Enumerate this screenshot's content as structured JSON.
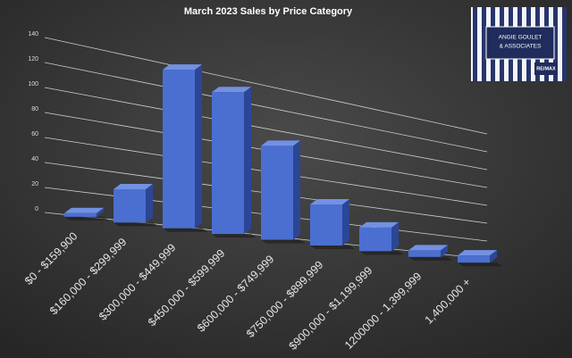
{
  "chart_data": {
    "type": "bar3d",
    "title": "March 2023 Sales by Price Category",
    "categories": [
      "$0 - $159,900",
      "$160,000 - $299,999",
      "$300,000 - $449,999",
      "$450,000 - $599,999",
      "$600,000 - $749,999",
      "$750,000 - $899,999",
      "$900,000 - $1,199,999",
      "1200000 - 1,399,999",
      "1,400,000 +"
    ],
    "values": [
      3,
      28,
      138,
      128,
      88,
      40,
      24,
      7,
      8
    ],
    "color": "#4a6fd0",
    "ylim": [
      0,
      140
    ],
    "yticks": [
      0,
      20,
      40,
      60,
      80,
      100,
      120,
      140
    ],
    "grid": true
  },
  "logo": {
    "lines": [
      "ANGIE GOULET",
      "& ASSOCIATES"
    ],
    "brand": "RE/MAX"
  }
}
